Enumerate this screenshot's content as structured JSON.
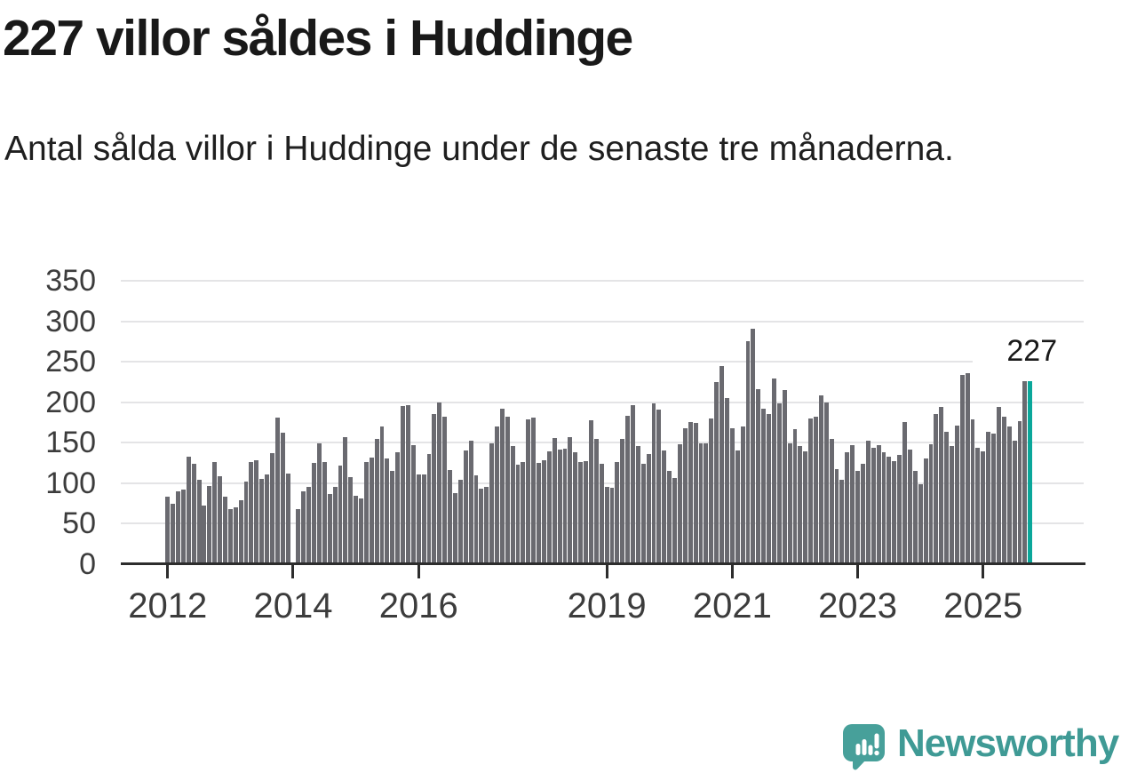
{
  "header": {
    "title": "227 villor såldes i Huddinge",
    "subtitle": "Antal sålda villor i Huddinge under de senaste tre månaderna."
  },
  "chart_data": {
    "type": "bar",
    "title": "227 villor såldes i Huddinge",
    "xlabel": "",
    "ylabel": "",
    "x_unit": "month",
    "x_range": "2012-01 to 2025-10",
    "ylim": [
      0,
      350
    ],
    "yticks": [
      0,
      50,
      100,
      150,
      200,
      250,
      300,
      350
    ],
    "grid": true,
    "legend": "none",
    "xticks": [
      {
        "label": "2012",
        "month_index": 0
      },
      {
        "label": "2014",
        "month_index": 24
      },
      {
        "label": "2016",
        "month_index": 48
      },
      {
        "label": "2019",
        "month_index": 84
      },
      {
        "label": "2021",
        "month_index": 108
      },
      {
        "label": "2023",
        "month_index": 132
      },
      {
        "label": "2025",
        "month_index": 156
      }
    ],
    "values": [
      84,
      75,
      90,
      92,
      133,
      124,
      105,
      73,
      97,
      127,
      109,
      84,
      68,
      70,
      79,
      102,
      127,
      129,
      106,
      111,
      137,
      181,
      163,
      112,
      null,
      68,
      90,
      96,
      125,
      149,
      126,
      87,
      96,
      122,
      157,
      108,
      85,
      81,
      127,
      132,
      155,
      170,
      131,
      115,
      138,
      196,
      197,
      147,
      111,
      111,
      136,
      186,
      200,
      183,
      117,
      88,
      104,
      141,
      153,
      110,
      93,
      96,
      149,
      170,
      192,
      182,
      146,
      123,
      126,
      179,
      181,
      125,
      129,
      140,
      156,
      142,
      143,
      157,
      139,
      126,
      128,
      178,
      155,
      124,
      96,
      95,
      127,
      155,
      184,
      197,
      146,
      124,
      136,
      199,
      191,
      141,
      115,
      107,
      148,
      168,
      176,
      175,
      149,
      150,
      180,
      225,
      245,
      206,
      168,
      141,
      170,
      276,
      291,
      217,
      192,
      186,
      230,
      199,
      216,
      150,
      167,
      146,
      140,
      180,
      182,
      209,
      200,
      155,
      118,
      105,
      139,
      147,
      116,
      124,
      153,
      144,
      147,
      138,
      133,
      128,
      135,
      176,
      142,
      115,
      99,
      131,
      148,
      186,
      195,
      164,
      146,
      172,
      234,
      236,
      179,
      144,
      140,
      164,
      162,
      195,
      182,
      170,
      153,
      177,
      226,
      227
    ],
    "highlight": {
      "index": 165,
      "label": "227"
    }
  },
  "annotation": {
    "last_value_label": "227"
  },
  "footer": {
    "brand_name": "Newsworthy"
  },
  "colors": {
    "bar": "#6a6a70",
    "highlight": "#0aa79a",
    "grid": "#e4e4e6",
    "axis": "#2d2d2d",
    "tick_label": "#3c3c3c",
    "title_text": "#191919",
    "logo_bubble": "#47a09a",
    "brand_text": "#3f9a95"
  }
}
